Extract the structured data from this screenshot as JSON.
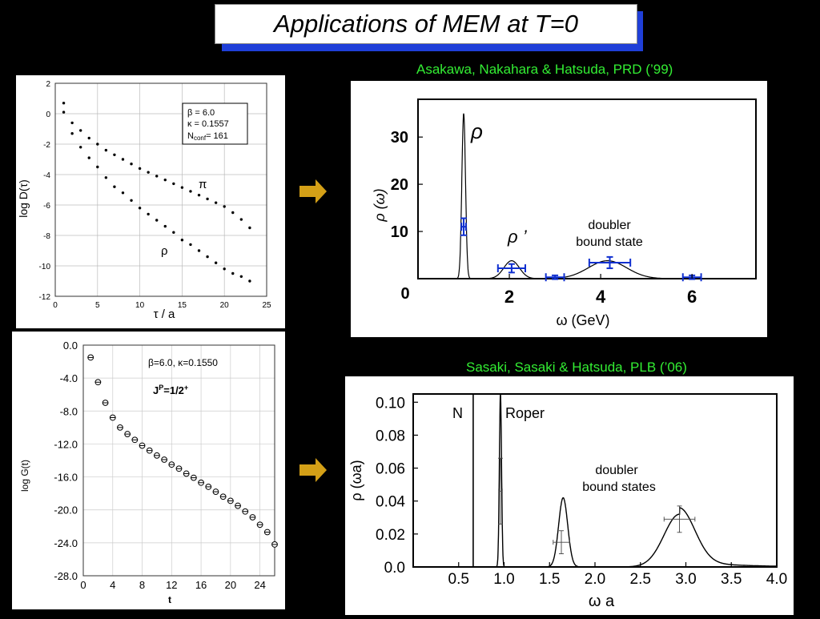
{
  "slide": {
    "title": "Applications of MEM at T=0",
    "citation_top": "Asakawa, Nakahara & Hatsuda,  PRD (’99)",
    "citation_bottom": "Sasaki, Sasaki & Hatsuda, PLB (’06)",
    "arrow_color": "#d4a017",
    "title_shadow_color": "#1f3fd8"
  },
  "panels": {
    "top_left": {
      "ylabel": "log D(τ)",
      "xlabel": "τ / a",
      "xticks": [
        "0",
        "5",
        "10",
        "15",
        "20",
        "25"
      ],
      "yticks": [
        "2",
        "0",
        "-2",
        "-4",
        "-6",
        "-8",
        "-10",
        "-12"
      ],
      "legend": [
        "β = 6.0",
        "κ = 0.1557",
        "N",
        "conf",
        "= 161"
      ],
      "label_pi": "π",
      "label_rho": "ρ"
    },
    "bottom_left": {
      "ylabel": "log G(t)",
      "xlabel": "t",
      "xticks": [
        "0",
        "4",
        "8",
        "12",
        "16",
        "20",
        "24"
      ],
      "yticks": [
        "0.0",
        "-4.0",
        "-8.0",
        "-12.0",
        "-16.0",
        "-20.0",
        "-24.0",
        "-28.0"
      ],
      "legend": "β=6.0,  κ=0.1550",
      "jp_J": "J",
      "jp_P": "P",
      "jp_eq": "=1/2",
      "jp_plus": "+"
    },
    "top_right": {
      "ylabel": "ρ (ω)",
      "xlabel": "ω (GeV)",
      "xticks": [
        "2",
        "4",
        "6"
      ],
      "yticks": [
        "30",
        "20",
        "10"
      ],
      "origin": "0",
      "label_rho": "ρ",
      "label_rho_prime": "ρ ’",
      "doubler_line1": "doubler",
      "doubler_line2": "bound state"
    },
    "bottom_right": {
      "ylabel": "ρ (ωa)",
      "xlabel": "ω a",
      "xticks": [
        "0.5",
        "1.0",
        "1.5",
        "2.0",
        "2.5",
        "3.0",
        "3.5",
        "4.0"
      ],
      "yticks": [
        "0.10",
        "0.08",
        "0.06",
        "0.04",
        "0.02",
        "0.0"
      ],
      "label_N": "N",
      "label_roper": "Roper",
      "doubler_line1": "doubler",
      "doubler_line2": "bound states"
    }
  },
  "chart_data": [
    {
      "type": "scatter",
      "xlabel": "τ / a",
      "ylabel": "log D(τ)",
      "xlim": [
        0,
        25
      ],
      "ylim": [
        -12,
        2
      ],
      "series": [
        {
          "name": "π",
          "x": [
            1,
            2,
            3,
            4,
            5,
            6,
            7,
            8,
            9,
            10,
            11,
            12,
            13,
            14,
            15,
            16,
            17,
            18,
            19,
            20,
            21,
            22,
            23
          ],
          "y": [
            0.1,
            -0.6,
            -1.1,
            -1.6,
            -2.0,
            -2.4,
            -2.7,
            -3.0,
            -3.3,
            -3.6,
            -3.85,
            -4.1,
            -4.35,
            -4.6,
            -4.85,
            -5.1,
            -5.35,
            -5.6,
            -5.85,
            -6.1,
            -6.5,
            -6.95,
            -7.5
          ]
        },
        {
          "name": "ρ",
          "x": [
            1,
            2,
            3,
            4,
            5,
            6,
            7,
            8,
            9,
            10,
            11,
            12,
            13,
            14,
            15,
            16,
            17,
            18,
            19,
            20,
            21,
            22,
            23
          ],
          "y": [
            0.7,
            -1.3,
            -2.2,
            -2.9,
            -3.5,
            -4.2,
            -4.8,
            -5.2,
            -5.7,
            -6.2,
            -6.6,
            -7.0,
            -7.4,
            -7.8,
            -8.3,
            -8.6,
            -9.0,
            -9.4,
            -9.8,
            -10.2,
            -10.5,
            -10.7,
            -11.0
          ]
        }
      ]
    },
    {
      "type": "scatter",
      "xlabel": "t",
      "ylabel": "log G(t)",
      "xlim": [
        0,
        26
      ],
      "ylim": [
        -28,
        0
      ],
      "series": [
        {
          "name": "",
          "x": [
            1,
            2,
            3,
            4,
            5,
            6,
            7,
            8,
            9,
            10,
            11,
            12,
            13,
            14,
            15,
            16,
            17,
            18,
            19,
            20,
            21,
            22,
            23,
            24,
            25,
            26
          ],
          "y": [
            -1.5,
            -4.5,
            -7.0,
            -8.8,
            -10.0,
            -10.8,
            -11.5,
            -12.2,
            -12.8,
            -13.4,
            -13.9,
            -14.5,
            -15.0,
            -15.6,
            -16.1,
            -16.7,
            -17.2,
            -17.8,
            -18.4,
            -18.9,
            -19.5,
            -20.2,
            -20.9,
            -21.8,
            -22.7,
            -24.2
          ]
        }
      ]
    },
    {
      "type": "line",
      "xlabel": "ω (GeV)",
      "ylabel": "ρ (ω)",
      "xlim": [
        0,
        7.4
      ],
      "ylim": [
        0,
        38
      ],
      "peaks": [
        {
          "label": "ρ",
          "center": 1.0,
          "height": 35
        },
        {
          "label": "ρ ’",
          "center": 2.05,
          "height": 3.8
        },
        {
          "label": "doubler bound state",
          "center": 4.15,
          "height": 3.8
        }
      ],
      "error_points": [
        {
          "x": 1.0,
          "y": 11,
          "xerr": 0.05,
          "yerr": 1.8
        },
        {
          "x": 2.05,
          "y": 2.2,
          "xerr": 0.3,
          "yerr": 0.9
        },
        {
          "x": 3.0,
          "y": 0.3,
          "xerr": 0.2,
          "yerr": 0.4
        },
        {
          "x": 4.2,
          "y": 3.4,
          "xerr": 0.45,
          "yerr": 1.2
        },
        {
          "x": 6.0,
          "y": 0.3,
          "xerr": 0.2,
          "yerr": 0.4
        }
      ]
    },
    {
      "type": "line",
      "xlabel": "ω a",
      "ylabel": "ρ (ωa)",
      "xlim": [
        0,
        4.0
      ],
      "ylim": [
        0,
        0.105
      ],
      "peaks": [
        {
          "label": "N",
          "center": 0.66,
          "height": 0.105
        },
        {
          "label": "Roper",
          "center": 0.96,
          "height": 0.105
        },
        {
          "label": "doubler",
          "center": 1.65,
          "height": 0.042
        },
        {
          "label": "doubler",
          "center": 2.93,
          "height": 0.032
        }
      ],
      "error_points": [
        {
          "x": 0.96,
          "y": 0.046,
          "xerr": 0.02,
          "yerr": 0.02
        },
        {
          "x": 1.63,
          "y": 0.015,
          "xerr": 0.09,
          "yerr": 0.007
        },
        {
          "x": 2.93,
          "y": 0.029,
          "xerr": 0.17,
          "yerr": 0.008
        }
      ]
    }
  ]
}
